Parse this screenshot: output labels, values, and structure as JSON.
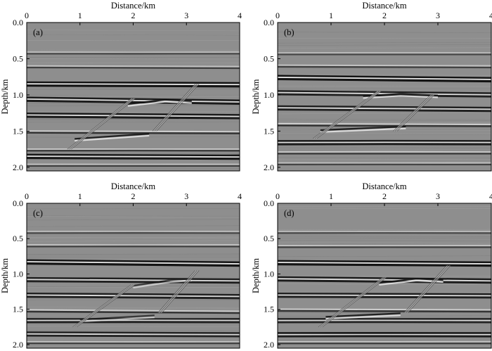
{
  "panels": [
    {
      "id": "a",
      "label": "(a)",
      "x_title": "Distance/km",
      "y_title": "Depth/km",
      "x_ticks": [
        "0",
        "1",
        "2",
        "3",
        "4"
      ],
      "y_ticks": [
        "0.0",
        "0.5",
        "1.0",
        "1.5",
        "2.0"
      ],
      "x_range_km": [
        0,
        4
      ],
      "depth_range_km": [
        0,
        2.05
      ],
      "reflectors": [
        {
          "depth_left_km": 0.42,
          "depth_right_km": 0.42,
          "strength": 0.35,
          "rings": 2
        },
        {
          "depth_left_km": 0.61,
          "depth_right_km": 0.62,
          "strength": 0.45,
          "rings": 2
        },
        {
          "depth_left_km": 0.85,
          "depth_right_km": 0.86,
          "strength": 1.0,
          "rings": 3
        },
        {
          "depth_left_km": 1.06,
          "depth_right_km": 1.1,
          "strength": 0.9,
          "rings": 3
        },
        {
          "depth_left_km": 1.28,
          "depth_right_km": 1.3,
          "strength": 0.9,
          "rings": 3
        },
        {
          "depth_left_km": 1.51,
          "depth_right_km": 1.52,
          "strength": 0.6,
          "rings": 2
        },
        {
          "depth_left_km": 1.76,
          "depth_right_km": 1.76,
          "strength": 0.5,
          "rings": 2
        },
        {
          "depth_left_km": 1.85,
          "depth_right_km": 1.86,
          "strength": 0.95,
          "rings": 3
        },
        {
          "depth_left_km": 1.97,
          "depth_right_km": 1.97,
          "strength": 0.45,
          "rings": 2
        }
      ],
      "wedge": {
        "top_km": [
          [
            1.9,
            1.14
          ],
          [
            2.6,
            1.08
          ],
          [
            3.1,
            1.1
          ]
        ],
        "bottom_km": [
          [
            0.9,
            1.62
          ],
          [
            2.3,
            1.55
          ]
        ],
        "strength": 0.9
      },
      "faults_km": [
        [
          [
            0.8,
            1.75
          ],
          [
            2.0,
            1.05
          ]
        ],
        [
          [
            2.4,
            1.5
          ],
          [
            3.2,
            0.85
          ]
        ]
      ]
    },
    {
      "id": "b",
      "label": "(b)",
      "x_title": "Distance/km",
      "y_title": "Depth/km",
      "x_ticks": [
        "0",
        "1",
        "2",
        "3",
        "4"
      ],
      "y_ticks": [
        "0.0",
        "0.5",
        "1.0",
        "1.5",
        "2.0"
      ],
      "x_range_km": [
        0,
        4
      ],
      "depth_range_km": [
        0,
        2.05
      ],
      "reflectors": [
        {
          "depth_left_km": 0.43,
          "depth_right_km": 0.43,
          "strength": 0.35,
          "rings": 2
        },
        {
          "depth_left_km": 0.6,
          "depth_right_km": 0.61,
          "strength": 0.45,
          "rings": 2
        },
        {
          "depth_left_km": 0.76,
          "depth_right_km": 0.79,
          "strength": 1.0,
          "rings": 3
        },
        {
          "depth_left_km": 0.97,
          "depth_right_km": 1.0,
          "strength": 0.85,
          "rings": 3
        },
        {
          "depth_left_km": 1.18,
          "depth_right_km": 1.2,
          "strength": 0.85,
          "rings": 3
        },
        {
          "depth_left_km": 1.41,
          "depth_right_km": 1.42,
          "strength": 0.6,
          "rings": 2
        },
        {
          "depth_left_km": 1.66,
          "depth_right_km": 1.66,
          "strength": 0.9,
          "rings": 3
        },
        {
          "depth_left_km": 1.8,
          "depth_right_km": 1.8,
          "strength": 0.5,
          "rings": 2
        },
        {
          "depth_left_km": 1.95,
          "depth_right_km": 1.95,
          "strength": 0.4,
          "rings": 2
        }
      ],
      "wedge": {
        "top_km": [
          [
            1.6,
            1.03
          ],
          [
            2.3,
            1.0
          ],
          [
            3.0,
            1.02
          ]
        ],
        "bottom_km": [
          [
            0.8,
            1.5
          ],
          [
            2.4,
            1.45
          ]
        ],
        "strength": 0.9
      },
      "faults_km": [
        [
          [
            0.7,
            1.6
          ],
          [
            1.9,
            0.95
          ]
        ],
        [
          [
            2.2,
            1.5
          ],
          [
            2.9,
            1.0
          ]
        ]
      ]
    },
    {
      "id": "c",
      "label": "(c)",
      "x_title": "Distance/km",
      "y_title": "Depth/km",
      "x_ticks": [
        "0",
        "1",
        "2",
        "3",
        "4"
      ],
      "y_ticks": [
        "0.0",
        "0.5",
        "1.0",
        "1.5",
        "2.0"
      ],
      "x_range_km": [
        0,
        4
      ],
      "depth_range_km": [
        0,
        2.05
      ],
      "reflectors": [
        {
          "depth_left_km": 0.41,
          "depth_right_km": 0.41,
          "strength": 0.35,
          "rings": 2
        },
        {
          "depth_left_km": 0.6,
          "depth_right_km": 0.6,
          "strength": 0.45,
          "rings": 2
        },
        {
          "depth_left_km": 0.83,
          "depth_right_km": 0.86,
          "strength": 1.0,
          "rings": 3
        },
        {
          "depth_left_km": 1.08,
          "depth_right_km": 1.1,
          "strength": 0.85,
          "rings": 3
        },
        {
          "depth_left_km": 1.3,
          "depth_right_km": 1.32,
          "strength": 0.85,
          "rings": 3
        },
        {
          "depth_left_km": 1.52,
          "depth_right_km": 1.54,
          "strength": 0.6,
          "rings": 2
        },
        {
          "depth_left_km": 1.66,
          "depth_right_km": 1.66,
          "strength": 0.85,
          "rings": 3
        },
        {
          "depth_left_km": 1.85,
          "depth_right_km": 1.86,
          "strength": 0.8,
          "rings": 3
        },
        {
          "depth_left_km": 1.97,
          "depth_right_km": 1.97,
          "strength": 0.4,
          "rings": 2
        }
      ],
      "wedge": {
        "top_km": [
          [
            2.0,
            1.18
          ],
          [
            2.7,
            1.1
          ],
          [
            3.1,
            1.08
          ]
        ],
        "bottom_km": [
          [
            1.0,
            1.66
          ],
          [
            2.4,
            1.6
          ]
        ],
        "strength": 0.7
      },
      "faults_km": [
        [
          [
            0.9,
            1.75
          ],
          [
            2.0,
            1.15
          ]
        ],
        [
          [
            2.5,
            1.55
          ],
          [
            3.2,
            0.95
          ]
        ]
      ]
    },
    {
      "id": "d",
      "label": "(d)",
      "x_title": "Distance/km",
      "y_title": "Depth/km",
      "x_ticks": [
        "0",
        "1",
        "2",
        "3",
        "4"
      ],
      "y_ticks": [
        "0.0",
        "0.5",
        "1.0",
        "1.5",
        "2.0"
      ],
      "x_range_km": [
        0,
        4
      ],
      "depth_range_km": [
        0,
        2.05
      ],
      "reflectors": [
        {
          "depth_left_km": 0.41,
          "depth_right_km": 0.41,
          "strength": 0.35,
          "rings": 2
        },
        {
          "depth_left_km": 0.61,
          "depth_right_km": 0.61,
          "strength": 0.45,
          "rings": 2
        },
        {
          "depth_left_km": 0.84,
          "depth_right_km": 0.86,
          "strength": 1.0,
          "rings": 3
        },
        {
          "depth_left_km": 1.07,
          "depth_right_km": 1.1,
          "strength": 0.9,
          "rings": 3
        },
        {
          "depth_left_km": 1.3,
          "depth_right_km": 1.31,
          "strength": 0.85,
          "rings": 3
        },
        {
          "depth_left_km": 1.51,
          "depth_right_km": 1.52,
          "strength": 0.6,
          "rings": 2
        },
        {
          "depth_left_km": 1.66,
          "depth_right_km": 1.66,
          "strength": 0.8,
          "rings": 3
        },
        {
          "depth_left_km": 1.86,
          "depth_right_km": 1.86,
          "strength": 0.9,
          "rings": 3
        },
        {
          "depth_left_km": 1.97,
          "depth_right_km": 1.97,
          "strength": 0.45,
          "rings": 2
        }
      ],
      "wedge": {
        "top_km": [
          [
            1.9,
            1.14
          ],
          [
            2.6,
            1.08
          ],
          [
            3.1,
            1.1
          ]
        ],
        "bottom_km": [
          [
            0.9,
            1.62
          ],
          [
            2.3,
            1.57
          ]
        ],
        "strength": 0.9
      },
      "faults_km": [
        [
          [
            0.8,
            1.75
          ],
          [
            2.0,
            1.05
          ]
        ],
        [
          [
            2.4,
            1.55
          ],
          [
            3.2,
            0.88
          ]
        ]
      ]
    }
  ],
  "colors": {
    "background": "#ffffff",
    "section_gray": "#8e8e8e",
    "dark": "#141414",
    "light": "#e2e2e2",
    "frame": "#000000"
  },
  "icons": [
    "seismic-image"
  ]
}
